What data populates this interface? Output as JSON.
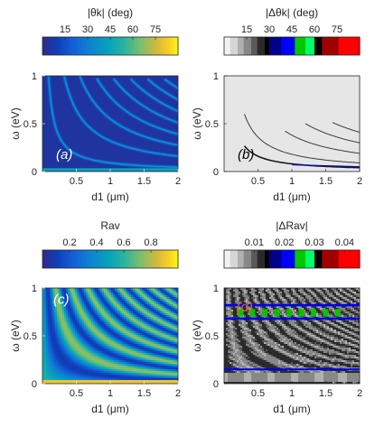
{
  "chart_data": [
    {
      "type": "heatmap",
      "panel_label": "(a)",
      "colorbar_title": "|θk| (deg)",
      "colorbar_ticks": [
        15,
        30,
        45,
        60,
        75
      ],
      "colorbar_range": [
        0,
        90
      ],
      "colormap": "parula",
      "xlabel": "d1 (μm)",
      "ylabel": "ω (eV)",
      "xlim": [
        0,
        2
      ],
      "ylim": [
        0,
        1
      ],
      "xticks": [
        0.5,
        1,
        1.5,
        2
      ],
      "yticks": [
        0,
        0.5,
        1
      ],
      "background_value_deg": 5,
      "ridge_value_deg": 40,
      "baseline_ridge_omega_eV": 0.02,
      "ridge_curves": [
        {
          "omega_times_d1": 0.09,
          "x_from": 0.05
        },
        {
          "omega_times_d1": 0.32,
          "x_from": 0.3
        },
        {
          "omega_times_d1": 0.55,
          "x_from": 0.55
        },
        {
          "omega_times_d1": 0.78,
          "x_from": 0.8
        },
        {
          "omega_times_d1": 1.02,
          "x_from": 1.05
        },
        {
          "omega_times_d1": 1.26,
          "x_from": 1.3
        },
        {
          "omega_times_d1": 1.5,
          "x_from": 1.55
        },
        {
          "omega_times_d1": 1.74,
          "x_from": 1.8
        }
      ]
    },
    {
      "type": "heatmap",
      "panel_label": "(b)",
      "colorbar_title": "|Δθk| (deg)",
      "colorbar_ticks": [
        15,
        30,
        45,
        60,
        75
      ],
      "colorbar_range": [
        0,
        90
      ],
      "colormap": "segmented gray-blue-green-red",
      "xlabel": "d1 (μm)",
      "ylabel": "ω (eV)",
      "xlim": [
        0,
        2
      ],
      "ylim": [
        0,
        1
      ],
      "xticks": [
        0.5,
        1,
        1.5,
        2
      ],
      "yticks": [
        0,
        0.5,
        1
      ],
      "ridge_curves": [
        {
          "omega_times_d1": 0.08,
          "x_from": 0.3
        },
        {
          "omega_times_d1": 0.18,
          "x_from": 0.3
        },
        {
          "omega_times_d1": 0.38,
          "x_from": 0.9
        },
        {
          "omega_times_d1": 0.6,
          "x_from": 1.2
        },
        {
          "omega_times_d1": 0.82,
          "x_from": 1.6
        }
      ]
    },
    {
      "type": "heatmap",
      "panel_label": "(c)",
      "colorbar_title": "Rav",
      "colorbar_ticks": [
        0.2,
        0.4,
        0.6,
        0.8
      ],
      "colorbar_range": [
        0,
        1
      ],
      "colormap": "parula",
      "xlabel": "d1 (μm)",
      "ylabel": "ω (eV)",
      "xlim": [
        0,
        2
      ],
      "ylim": [
        0,
        1
      ],
      "xticks": [
        0.5,
        1,
        1.5,
        2
      ],
      "yticks": [
        0,
        0.5,
        1
      ],
      "fringe_period_omega_times_d1": 0.235,
      "fringe_min_value": 0.1,
      "fringe_max_value": 0.75
    },
    {
      "type": "heatmap",
      "panel_label": "(d)",
      "colorbar_title": "|ΔRav|",
      "colorbar_ticks": [
        0.01,
        0.02,
        0.03,
        0.04
      ],
      "colorbar_range": [
        0,
        0.045
      ],
      "colormap": "segmented gray-blue-green-red",
      "xlabel": "d1 (μm)",
      "ylabel": "ω (eV)",
      "xlim": [
        0,
        2
      ],
      "ylim": [
        0,
        1
      ],
      "xticks": [
        0.5,
        1,
        1.5,
        2
      ],
      "yticks": [
        0,
        0.5,
        1
      ],
      "blue_band_omega_eV": [
        0.82,
        0.68,
        0.15
      ],
      "green_band_omega_eV": [
        0.76,
        0.72
      ]
    }
  ]
}
